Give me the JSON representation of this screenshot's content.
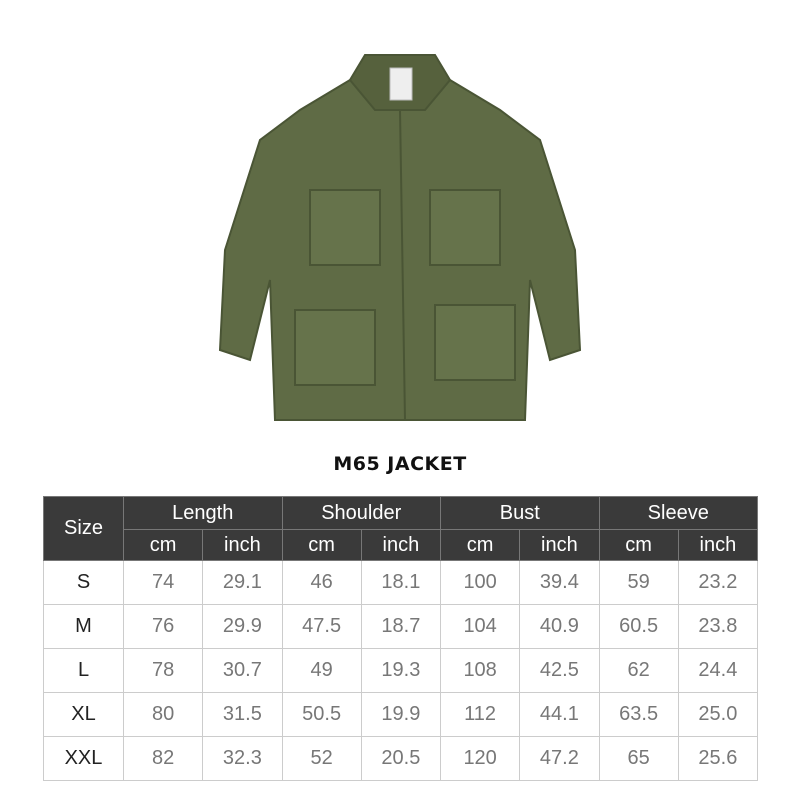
{
  "product": {
    "title": "M65 JACKET",
    "image": "olive-green-m65-field-jacket"
  },
  "colors": {
    "header_bg": "#3a3a3a",
    "jacket": "#5f6b45"
  },
  "table": {
    "size_header": "Size",
    "groups": [
      "Length",
      "Shoulder",
      "Bust",
      "Sleeve"
    ],
    "units": [
      "cm",
      "inch",
      "cm",
      "inch",
      "cm",
      "inch",
      "cm",
      "inch"
    ],
    "rows": [
      {
        "size": "S",
        "values": [
          "74",
          "29.1",
          "46",
          "18.1",
          "100",
          "39.4",
          "59",
          "23.2"
        ]
      },
      {
        "size": "M",
        "values": [
          "76",
          "29.9",
          "47.5",
          "18.7",
          "104",
          "40.9",
          "60.5",
          "23.8"
        ]
      },
      {
        "size": "L",
        "values": [
          "78",
          "30.7",
          "49",
          "19.3",
          "108",
          "42.5",
          "62",
          "24.4"
        ]
      },
      {
        "size": "XL",
        "values": [
          "80",
          "31.5",
          "50.5",
          "19.9",
          "112",
          "44.1",
          "63.5",
          "25.0"
        ]
      },
      {
        "size": "XXL",
        "values": [
          "82",
          "32.3",
          "52",
          "20.5",
          "120",
          "47.2",
          "65",
          "25.6"
        ]
      }
    ]
  }
}
